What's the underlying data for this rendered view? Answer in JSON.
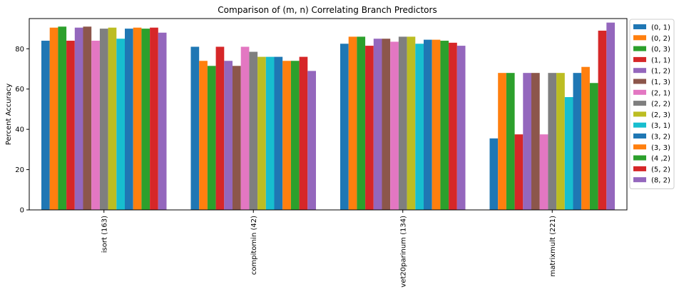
{
  "chart_data": {
    "type": "bar",
    "title": "Comparison of (m, n) Correlating Branch Predictors",
    "xlabel": "",
    "ylabel": "Percent Accuracy",
    "ylim": [
      0,
      95
    ],
    "yticks": [
      0,
      20,
      40,
      60,
      80
    ],
    "categories": [
      "isort (163)",
      "compitomin (42)",
      "vet20parinum (134)",
      "matrixmult (221)"
    ],
    "legend_position": "outside-right",
    "series": [
      {
        "name": "(0, 1)",
        "color": "#1f77b4",
        "values": [
          84,
          81,
          82.5,
          35.5
        ]
      },
      {
        "name": "(0, 2)",
        "color": "#ff7f0e",
        "values": [
          90.5,
          74,
          86,
          68
        ]
      },
      {
        "name": "(0, 3)",
        "color": "#2ca02c",
        "values": [
          91,
          71.5,
          86,
          68
        ]
      },
      {
        "name": "(1, 1)",
        "color": "#d62728",
        "values": [
          84,
          81,
          81.5,
          37.5
        ]
      },
      {
        "name": "(1, 2)",
        "color": "#9467bd",
        "values": [
          90.5,
          74,
          85,
          68
        ]
      },
      {
        "name": "(1, 3)",
        "color": "#8c564b",
        "values": [
          91,
          71.5,
          85,
          68
        ]
      },
      {
        "name": "(2, 1)",
        "color": "#e377c2",
        "values": [
          84,
          81,
          83.5,
          37.5
        ]
      },
      {
        "name": "(2, 2)",
        "color": "#7f7f7f",
        "values": [
          90,
          78.5,
          86,
          68
        ]
      },
      {
        "name": "(2, 3)",
        "color": "#bcbd22",
        "values": [
          90.5,
          76,
          86,
          68
        ]
      },
      {
        "name": "(3, 1)",
        "color": "#17becf",
        "values": [
          85,
          76,
          82.5,
          56
        ]
      },
      {
        "name": "(3, 2)",
        "color": "#1f77b4",
        "values": [
          90,
          76,
          84.5,
          68
        ]
      },
      {
        "name": "(3, 3)",
        "color": "#ff7f0e",
        "values": [
          90.5,
          74,
          84.5,
          71
        ]
      },
      {
        "name": "(4 ,2)",
        "color": "#2ca02c",
        "values": [
          90,
          74,
          84,
          63
        ]
      },
      {
        "name": "(5, 2)",
        "color": "#d62728",
        "values": [
          90.5,
          76,
          83,
          89
        ]
      },
      {
        "name": "(8, 2)",
        "color": "#9467bd",
        "values": [
          88,
          69,
          81.5,
          93
        ]
      }
    ]
  }
}
